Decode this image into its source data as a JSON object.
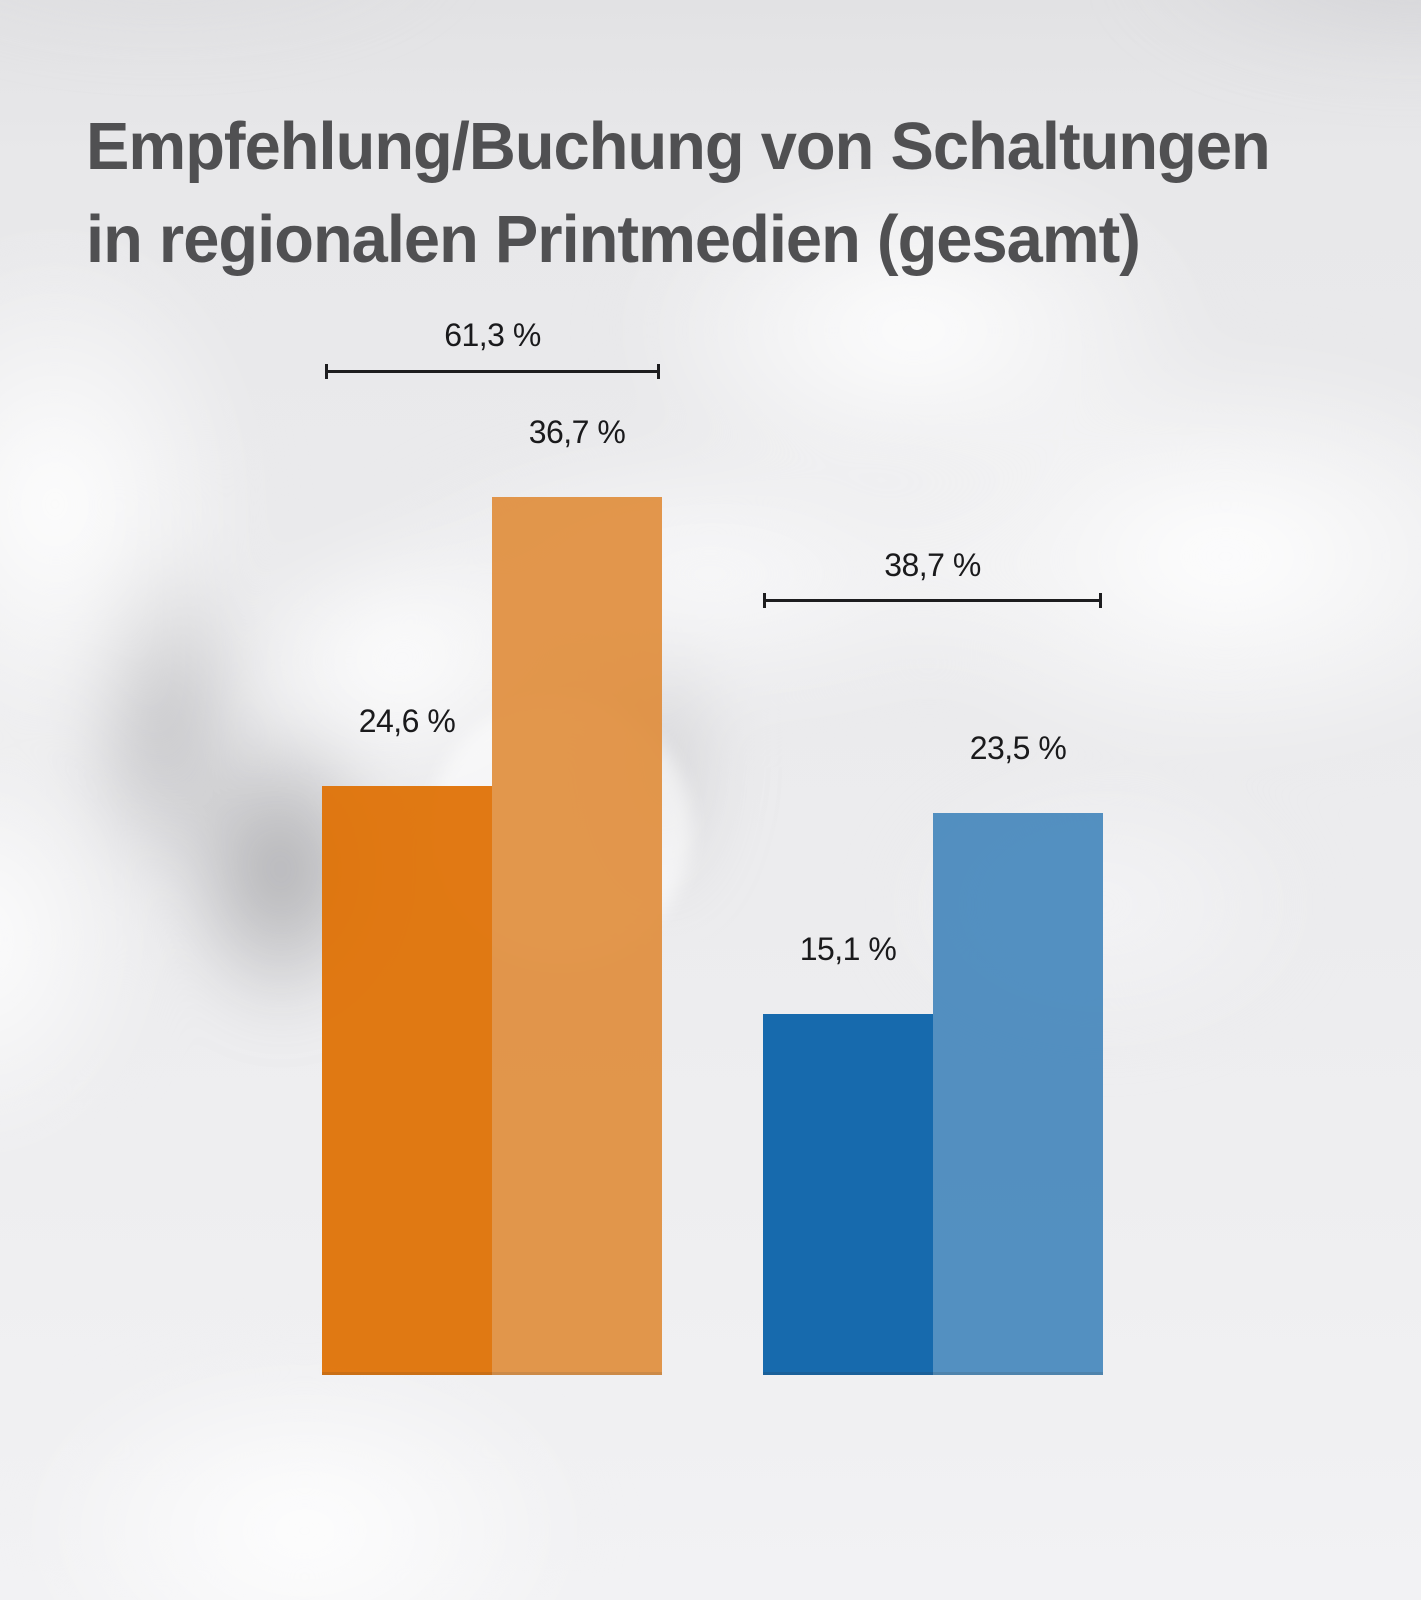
{
  "title": {
    "line1": "Empfehlung/Buchung von Schaltungen",
    "line2": "in regionalen Printmedien (gesamt)"
  },
  "colors": {
    "title_text": "#505052",
    "label_text": "#1a1a1c",
    "bracket_line": "#1d1d1f",
    "orange_dark": "#e07206",
    "orange_light": "#e08a35",
    "blue_dark": "#0f65ab",
    "blue_light": "#4688bd"
  },
  "chart_data": {
    "type": "bar",
    "title": "Empfehlung/Buchung von Schaltungen in regionalen Printmedien (gesamt)",
    "unit": "%",
    "decimal_separator": ",",
    "axes_visible": false,
    "gridlines": false,
    "legend": false,
    "ylim": [
      0,
      40
    ],
    "groups": [
      {
        "id": "orange-group",
        "total_value": 61.3,
        "total_label": "61,3 %",
        "bars": [
          {
            "value": 24.6,
            "label": "24,6 %",
            "color": "#e07206",
            "opacity": 0.94
          },
          {
            "value": 36.7,
            "label": "36,7 %",
            "color": "#e08a35",
            "opacity": 0.88
          }
        ]
      },
      {
        "id": "blue-group",
        "total_value": 38.7,
        "total_label": "38,7 %",
        "bars": [
          {
            "value": 15.1,
            "label": "15,1 %",
            "color": "#0f65ab",
            "opacity": 0.96
          },
          {
            "value": 23.5,
            "label": "23,5 %",
            "color": "#4688bd",
            "opacity": 0.92
          }
        ]
      }
    ]
  }
}
